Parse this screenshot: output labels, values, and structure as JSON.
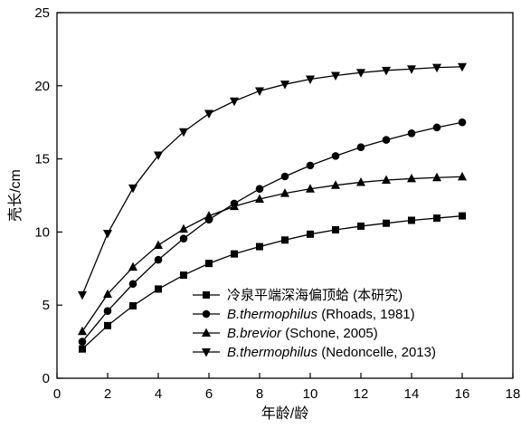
{
  "chart_data": {
    "type": "line",
    "xlabel": "年龄/龄",
    "ylabel": "壳长/cm",
    "xlim": [
      0,
      18
    ],
    "ylim": [
      0,
      25
    ],
    "xticks": [
      0,
      2,
      4,
      6,
      8,
      10,
      12,
      14,
      16,
      18
    ],
    "yticks": [
      0,
      5,
      10,
      15,
      20,
      25
    ],
    "grid": false,
    "legend_position": "bottom-right",
    "x": [
      1,
      2,
      3,
      4,
      5,
      6,
      7,
      8,
      9,
      10,
      11,
      12,
      13,
      14,
      15,
      16
    ],
    "series": [
      {
        "name": "冷泉平端深海偏顶蛤 (本研究)",
        "name_parts": [
          {
            "text": "冷泉平端深海偏顶蛤 (本研究)",
            "italic": false
          }
        ],
        "marker": "square",
        "values": [
          2.0,
          3.6,
          4.95,
          6.1,
          7.05,
          7.85,
          8.5,
          9.0,
          9.45,
          9.85,
          10.15,
          10.4,
          10.6,
          10.8,
          10.95,
          11.1
        ]
      },
      {
        "name": "B.thermophilus (Rhoads, 1981)",
        "name_parts": [
          {
            "text": "B.thermophilus",
            "italic": true
          },
          {
            "text": " (Rhoads, 1981)",
            "italic": false
          }
        ],
        "marker": "circle",
        "values": [
          2.5,
          4.6,
          6.45,
          8.1,
          9.55,
          10.85,
          11.95,
          12.95,
          13.8,
          14.55,
          15.2,
          15.8,
          16.3,
          16.75,
          17.15,
          17.5
        ]
      },
      {
        "name": "B.brevior (Schone, 2005)",
        "name_parts": [
          {
            "text": "B.brevior",
            "italic": true
          },
          {
            "text": " (Schone, 2005)",
            "italic": false
          }
        ],
        "marker": "triangle-up",
        "values": [
          3.2,
          5.75,
          7.6,
          9.1,
          10.2,
          11.1,
          11.75,
          12.25,
          12.65,
          12.95,
          13.2,
          13.4,
          13.55,
          13.65,
          13.72,
          13.78
        ]
      },
      {
        "name": "B.thermophilus (Nedoncelle, 2013)",
        "name_parts": [
          {
            "text": "B.thermophilus",
            "italic": true
          },
          {
            "text": " (Nedoncelle, 2013)",
            "italic": false
          }
        ],
        "marker": "triangle-down",
        "values": [
          5.7,
          9.9,
          13.0,
          15.25,
          16.85,
          18.1,
          18.95,
          19.65,
          20.1,
          20.45,
          20.7,
          20.9,
          21.05,
          21.15,
          21.25,
          21.3
        ]
      }
    ]
  }
}
